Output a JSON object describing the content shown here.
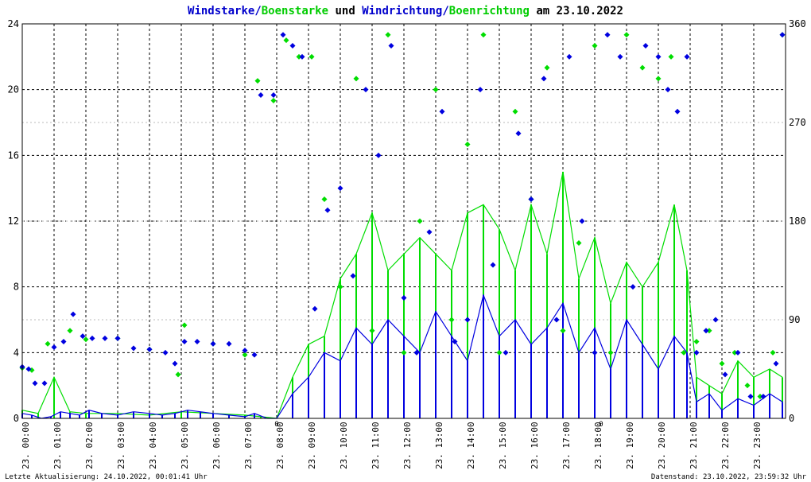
{
  "title": {
    "part1": "Windstarke",
    "sep1": "/",
    "part2": "Boenstarke",
    "part3": " und ",
    "part4": "Windrichtung",
    "sep2": "/",
    "part5": "Boenrichtung",
    "part6": " am 23.10.2022"
  },
  "footer": {
    "left": "Letzte Aktualisierung: 24.10.2022, 00:01:41 Uhr",
    "right": "Datenstand: 23.10.2022, 23:59:32 Uhr"
  },
  "colors": {
    "wind": "#0000e0",
    "gust": "#00dd00",
    "marker": "#cc0000",
    "grid": "#000000"
  },
  "markers": [
    {
      "hour": 8.0,
      "label": "0"
    },
    {
      "hour": 18.2,
      "label": "0"
    }
  ],
  "chart_data": {
    "type": "line",
    "x_range_hours": [
      0,
      24
    ],
    "y_left": {
      "min": 0,
      "max": 24,
      "ticks": [
        "0",
        "4",
        "8",
        "12",
        "16",
        "20",
        "24"
      ]
    },
    "y_right": {
      "min": 0,
      "max": 360,
      "ticks": [
        "0",
        "90",
        "180",
        "270",
        "360"
      ]
    },
    "x_tick_labels": [
      "23. 00:00",
      "23. 01:00",
      "23. 02:00",
      "23. 03:00",
      "23. 04:00",
      "23. 05:00",
      "23. 06:00",
      "23. 07:00",
      "23. 08:00",
      "23. 09:00",
      "23. 10:00",
      "23. 11:00",
      "23. 12:00",
      "23. 13:00",
      "23. 14:00",
      "23. 15:00",
      "23. 16:00",
      "23. 17:00",
      "23. 18:00",
      "23. 19:00",
      "23. 20:00",
      "23. 21:00",
      "23. 22:00",
      "23. 23:00"
    ],
    "grid": true,
    "series": [
      {
        "name": "Windstarke",
        "hours": [
          0.0,
          0.3,
          0.6,
          0.9,
          1.2,
          1.5,
          1.8,
          2.1,
          2.5,
          3.0,
          3.5,
          4.0,
          4.4,
          4.8,
          5.2,
          5.6,
          6.0,
          6.5,
          7.0,
          7.3,
          7.7,
          8.0,
          8.5,
          9.0,
          9.5,
          10.0,
          10.5,
          11.0,
          11.5,
          12.0,
          12.5,
          13.0,
          13.5,
          14.0,
          14.5,
          15.0,
          15.5,
          16.0,
          16.5,
          17.0,
          17.5,
          18.0,
          18.5,
          19.0,
          19.5,
          20.0,
          20.5,
          20.9,
          21.2,
          21.6,
          22.0,
          22.5,
          23.0,
          23.5,
          23.9
        ],
        "values": [
          0.3,
          0.2,
          0.0,
          0.1,
          0.4,
          0.3,
          0.2,
          0.5,
          0.3,
          0.2,
          0.4,
          0.3,
          0.2,
          0.3,
          0.5,
          0.4,
          0.3,
          0.2,
          0.1,
          0.3,
          0.0,
          0.0,
          1.5,
          2.5,
          4.0,
          3.5,
          5.5,
          4.5,
          6.0,
          5.0,
          4.0,
          6.5,
          5.0,
          3.5,
          7.5,
          5.0,
          6.0,
          4.5,
          5.5,
          7.0,
          4.0,
          5.5,
          3.0,
          6.0,
          4.5,
          3.0,
          5.0,
          4.0,
          1.0,
          1.5,
          0.5,
          1.2,
          0.8,
          1.5,
          1.0
        ]
      },
      {
        "name": "Boenstarke",
        "hours": [
          0.0,
          0.5,
          1.0,
          1.5,
          2.0,
          3.0,
          4.0,
          5.0,
          6.0,
          7.0,
          7.5,
          8.0,
          8.5,
          9.0,
          9.5,
          10.0,
          10.5,
          11.0,
          11.5,
          12.0,
          12.5,
          13.0,
          13.5,
          14.0,
          14.5,
          15.0,
          15.5,
          16.0,
          16.5,
          17.0,
          17.5,
          18.0,
          18.5,
          19.0,
          19.5,
          20.0,
          20.5,
          20.9,
          21.2,
          21.6,
          22.0,
          22.5,
          23.0,
          23.5,
          23.9
        ],
        "values": [
          0.5,
          0.3,
          2.5,
          0.4,
          0.3,
          0.3,
          0.2,
          0.4,
          0.3,
          0.2,
          0.1,
          0.0,
          2.5,
          4.5,
          5.0,
          8.5,
          10.0,
          12.5,
          9.0,
          10.0,
          11.0,
          10.0,
          9.0,
          12.5,
          13.0,
          11.5,
          9.0,
          13.0,
          10.0,
          15.0,
          8.5,
          11.0,
          7.0,
          9.5,
          8.0,
          9.5,
          13.0,
          9.0,
          2.5,
          2.0,
          1.5,
          3.5,
          2.5,
          3.0,
          2.5
        ]
      },
      {
        "name": "Windrichtung",
        "hours": [
          0.0,
          0.2,
          0.4,
          0.7,
          1.0,
          1.3,
          1.6,
          1.9,
          2.2,
          2.6,
          3.0,
          3.5,
          4.0,
          4.5,
          4.8,
          5.1,
          5.5,
          6.0,
          6.5,
          7.0,
          7.3,
          7.5,
          7.9,
          8.2,
          8.5,
          8.8,
          9.2,
          9.6,
          10.0,
          10.4,
          10.8,
          11.2,
          11.6,
          12.0,
          12.4,
          12.8,
          13.2,
          13.6,
          14.0,
          14.4,
          14.8,
          15.2,
          15.6,
          16.0,
          16.4,
          16.8,
          17.2,
          17.6,
          18.0,
          18.4,
          18.8,
          19.2,
          19.6,
          20.0,
          20.3,
          20.6,
          20.9,
          21.2,
          21.5,
          21.8,
          22.1,
          22.5,
          22.9,
          23.3,
          23.7,
          23.9
        ],
        "values": [
          47,
          45,
          32,
          32,
          65,
          70,
          95,
          75,
          73,
          73,
          73,
          64,
          63,
          60,
          50,
          70,
          70,
          68,
          68,
          62,
          58,
          295,
          295,
          350,
          340,
          330,
          100,
          190,
          210,
          130,
          300,
          240,
          340,
          110,
          60,
          170,
          280,
          70,
          90,
          300,
          140,
          60,
          260,
          200,
          310,
          90,
          330,
          180,
          60,
          350,
          330,
          120,
          340,
          330,
          300,
          280,
          330,
          60,
          80,
          90,
          40,
          60,
          20,
          20,
          50,
          350
        ]
      },
      {
        "name": "Boenrichtung",
        "hours": [
          0.0,
          0.3,
          0.8,
          1.5,
          2.0,
          3.0,
          4.0,
          4.9,
          5.1,
          6.0,
          7.0,
          7.4,
          7.9,
          8.3,
          8.7,
          9.1,
          9.5,
          10.0,
          10.5,
          11.0,
          11.5,
          12.0,
          12.5,
          13.0,
          13.5,
          14.0,
          14.5,
          15.0,
          15.5,
          16.0,
          16.5,
          17.0,
          17.5,
          18.0,
          18.5,
          19.0,
          19.5,
          20.0,
          20.4,
          20.8,
          21.2,
          21.6,
          22.0,
          22.4,
          22.8,
          23.2,
          23.6,
          23.9
        ],
        "values": [
          46,
          44,
          68,
          80,
          72,
          73,
          63,
          40,
          85,
          68,
          58,
          308,
          290,
          345,
          330,
          330,
          200,
          120,
          310,
          80,
          350,
          60,
          180,
          300,
          90,
          250,
          350,
          60,
          280,
          200,
          320,
          80,
          160,
          340,
          60,
          350,
          320,
          310,
          330,
          60,
          70,
          80,
          50,
          60,
          30,
          20,
          60,
          350
        ]
      }
    ]
  }
}
